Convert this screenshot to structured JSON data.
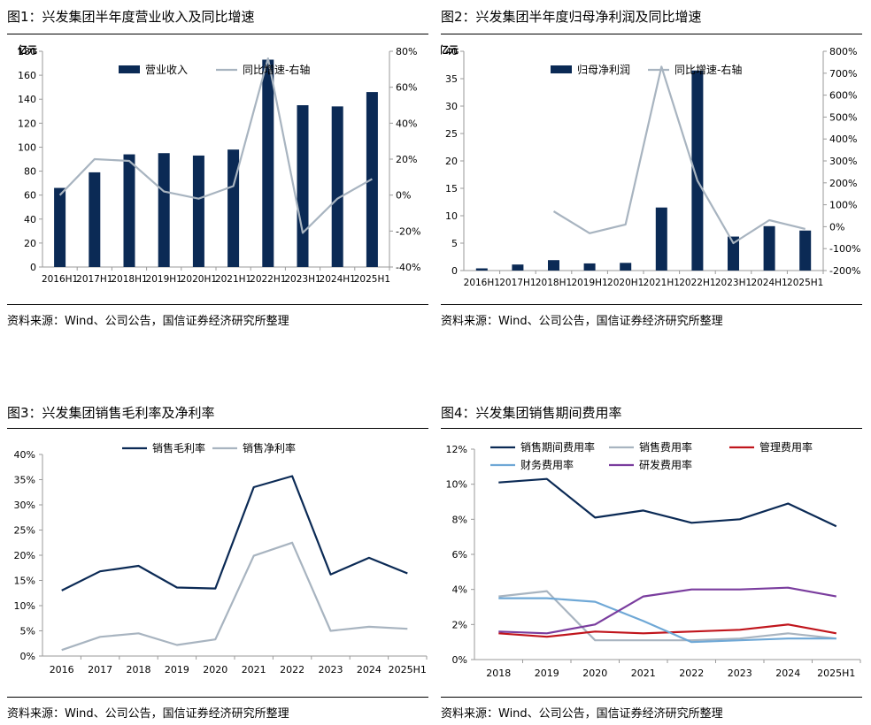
{
  "panels": [
    {
      "title": "图1：兴发集团半年度营业收入及同比增速",
      "source": "资料来源：Wind、公司公告，国信证券经济研究所整理"
    },
    {
      "title": "图2：兴发集团半年度归母净利润及同比增速",
      "source": "资料来源：Wind、公司公告，国信证券经济研究所整理"
    },
    {
      "title": "图3：兴发集团销售毛利率及净利率",
      "source": "资料来源：Wind、公司公告，国信证券经济研究所整理"
    },
    {
      "title": "图4：兴发集团销售期间费用率",
      "source": "资料来源：Wind、公司公告，国信证券经济研究所整理"
    }
  ],
  "colors": {
    "navy": "#0b2a55",
    "gray": "#a8b4c0",
    "red": "#c0151c",
    "blue": "#6fa8d6",
    "purple": "#7a3d9e",
    "axis": "#9a9a9a"
  },
  "chart_data": [
    {
      "type": "bar",
      "unit_label": "亿元",
      "categories": [
        "2016H1",
        "2017H1",
        "2018H1",
        "2019H1",
        "2020H1",
        "2021H1",
        "2022H1",
        "2023H1",
        "2024H1",
        "2025H1"
      ],
      "series": [
        {
          "name": "营业收入",
          "type": "bar",
          "axis": "left",
          "values": [
            66,
            79,
            94,
            95,
            93,
            98,
            173,
            135,
            134,
            146
          ]
        },
        {
          "name": "同比增速-右轴",
          "type": "line",
          "axis": "right",
          "values": [
            0,
            20,
            19,
            2,
            -2,
            5,
            76,
            -21,
            -2,
            9
          ]
        }
      ],
      "ylim": [
        0,
        180
      ],
      "yticks": [
        0,
        20,
        40,
        60,
        80,
        100,
        120,
        140,
        160,
        180
      ],
      "y2lim": [
        -40,
        80
      ],
      "y2ticks": [
        "-40%",
        "-20%",
        "0%",
        "20%",
        "40%",
        "60%",
        "80%"
      ]
    },
    {
      "type": "bar",
      "unit_label": "亿元",
      "categories": [
        "2016H1",
        "2017H1",
        "2018H1",
        "2019H1",
        "2020H1",
        "2021H1",
        "2022H1",
        "2023H1",
        "2024H1",
        "2025H1"
      ],
      "series": [
        {
          "name": "归母净利润",
          "type": "bar",
          "axis": "left",
          "values": [
            0.4,
            1.1,
            1.9,
            1.3,
            1.4,
            11.5,
            36.5,
            6.2,
            8.1,
            7.3
          ]
        },
        {
          "name": "同比增速-右轴",
          "type": "line",
          "axis": "right",
          "values": [
            null,
            null,
            70,
            -30,
            10,
            730,
            210,
            -75,
            30,
            -10
          ]
        }
      ],
      "ylim": [
        0,
        40
      ],
      "yticks": [
        0,
        5,
        10,
        15,
        20,
        25,
        30,
        35,
        40
      ],
      "y2lim": [
        -200,
        800
      ],
      "y2ticks": [
        "-200%",
        "-100%",
        "0%",
        "100%",
        "200%",
        "300%",
        "400%",
        "500%",
        "600%",
        "700%",
        "800%"
      ]
    },
    {
      "type": "line",
      "categories": [
        "2016",
        "2017",
        "2018",
        "2019",
        "2020",
        "2021",
        "2022",
        "2023",
        "2024",
        "2025H1"
      ],
      "series": [
        {
          "name": "销售毛利率",
          "values": [
            13.0,
            16.8,
            17.9,
            13.6,
            13.4,
            33.5,
            35.7,
            16.2,
            19.5,
            16.4
          ]
        },
        {
          "name": "销售净利率",
          "values": [
            1.2,
            3.8,
            4.5,
            2.2,
            3.3,
            19.9,
            22.5,
            5.0,
            5.8,
            5.4
          ]
        }
      ],
      "ylim": [
        0,
        40
      ],
      "yticks": [
        "0%",
        "5%",
        "10%",
        "15%",
        "20%",
        "25%",
        "30%",
        "35%",
        "40%"
      ]
    },
    {
      "type": "line",
      "categories": [
        "2018",
        "2019",
        "2020",
        "2021",
        "2022",
        "2023",
        "2024",
        "2025H1"
      ],
      "series": [
        {
          "name": "销售期间费用率",
          "values": [
            10.1,
            10.3,
            8.1,
            8.5,
            7.8,
            8.0,
            8.9,
            7.6
          ]
        },
        {
          "name": "销售费用率",
          "values": [
            3.6,
            3.9,
            1.1,
            1.1,
            1.1,
            1.2,
            1.5,
            1.2
          ]
        },
        {
          "name": "管理费用率",
          "values": [
            1.5,
            1.3,
            1.6,
            1.5,
            1.6,
            1.7,
            2.0,
            1.5
          ]
        },
        {
          "name": "财务费用率",
          "values": [
            3.5,
            3.5,
            3.3,
            2.2,
            1.0,
            1.1,
            1.2,
            1.2
          ]
        },
        {
          "name": "研发费用率",
          "values": [
            1.6,
            1.5,
            2.0,
            3.6,
            4.0,
            4.0,
            4.1,
            3.6
          ]
        }
      ],
      "ylim": [
        0,
        12
      ],
      "yticks": [
        "0%",
        "2%",
        "4%",
        "6%",
        "8%",
        "10%",
        "12%"
      ]
    }
  ]
}
